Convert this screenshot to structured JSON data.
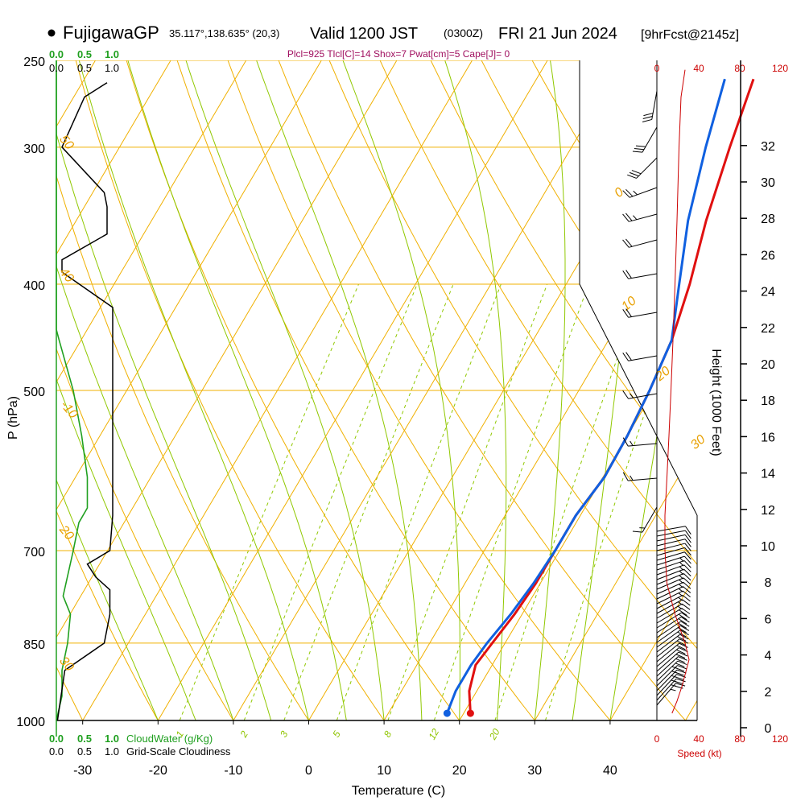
{
  "header": {
    "station": "FujigawaGP",
    "coords": "35.117°,138.635° (20,3)",
    "valid": "Valid 1200 JST",
    "utc": "(0300Z)",
    "date": "FRI 21 Jun 2024",
    "forecast": "[9hrFcst@2145z]",
    "params": "Plcl=925 Tlcl[C]=14 Shox=7 Pwat[cm]=5 Cape[J]= 0"
  },
  "colors": {
    "temperature": "#e01010",
    "dewpoint": "#1060e0",
    "isobar": "#f0b000",
    "mixing": "#90c800",
    "cloudwater": "#20a020",
    "wind_speed": "#cc0000"
  },
  "chart_data": {
    "type": "line",
    "title": "Skew-T log-P sounding",
    "xlabel": "Temperature (C)",
    "ylabel": "P (hPa)",
    "right_label": "Height (1000 Feet)",
    "xlim": [
      -35,
      45
    ],
    "ylim_hpa": [
      1000,
      250
    ],
    "x_ticks": [
      "-30",
      "-20",
      "-10",
      "0",
      "10",
      "20",
      "30",
      "40"
    ],
    "x_tick_values": [
      -30,
      -20,
      -10,
      0,
      10,
      20,
      30,
      40
    ],
    "p_ticks": [
      "250",
      "300",
      "400",
      "500",
      "700",
      "850",
      "1000"
    ],
    "p_tick_values": [
      250,
      300,
      400,
      500,
      700,
      850,
      1000
    ],
    "height_ticks": [
      "0",
      "2",
      "4",
      "6",
      "8",
      "10",
      "12",
      "14",
      "16",
      "18",
      "20",
      "22",
      "24",
      "26",
      "28",
      "30",
      "32"
    ],
    "height_tick_values": [
      0,
      2,
      4,
      6,
      8,
      10,
      12,
      14,
      16,
      18,
      20,
      22,
      24,
      26,
      28,
      30,
      32
    ],
    "isotherm_labels": [
      "0",
      "10",
      "20",
      "30"
    ],
    "isotherm_label_values": [
      0,
      10,
      20,
      30
    ],
    "mixing_labels": [
      "1",
      "2",
      "3",
      "5",
      "8",
      "12",
      "20"
    ],
    "mixing_label_values": [
      1,
      2,
      3,
      5,
      8,
      12,
      20
    ],
    "legend_top_green": [
      "0.0",
      "0.5",
      "1.0"
    ],
    "legend_top_black": [
      "0.0",
      "0.5",
      "1.0"
    ],
    "legend_bottom_green": [
      "0.0",
      "0.5",
      "1.0"
    ],
    "legend_bottom_black": [
      "0.0",
      "0.5",
      "1.0"
    ],
    "cloudwater_label": "CloudWater (g/Kg)",
    "cloudiness_label": "Grid-Scale Cloudiness",
    "speed_label": "Speed (kt)",
    "speed_ticks": [
      "0",
      "40",
      "80",
      "120"
    ],
    "speed_tick_values": [
      0,
      40,
      80,
      120
    ],
    "series": [
      {
        "name": "Temperature",
        "points": [
          [
            20.9,
            985
          ],
          [
            19.0,
            940
          ],
          [
            17.8,
            890
          ],
          [
            18.3,
            850
          ],
          [
            19.0,
            800
          ],
          [
            19.4,
            750
          ],
          [
            19.4,
            700
          ],
          [
            19.4,
            650
          ],
          [
            20.2,
            600
          ],
          [
            20.0,
            550
          ],
          [
            19.4,
            500
          ],
          [
            18.4,
            450
          ],
          [
            16.4,
            400
          ],
          [
            13.6,
            350
          ],
          [
            11.0,
            300
          ],
          [
            8.8,
            260
          ]
        ]
      },
      {
        "name": "Dewpoint",
        "points": [
          [
            17.8,
            985
          ],
          [
            17.2,
            940
          ],
          [
            17.2,
            890
          ],
          [
            17.6,
            850
          ],
          [
            18.5,
            800
          ],
          [
            19.1,
            750
          ],
          [
            19.4,
            700
          ],
          [
            19.4,
            650
          ],
          [
            20.2,
            600
          ],
          [
            20.0,
            550
          ],
          [
            19.4,
            500
          ],
          [
            18.4,
            450
          ],
          [
            15.0,
            400
          ],
          [
            11.2,
            350
          ],
          [
            7.8,
            300
          ],
          [
            5.0,
            260
          ]
        ]
      }
    ],
    "cloudwater_profile": [
      [
        0,
        1000
      ],
      [
        0.1,
        950
      ],
      [
        0.1,
        900
      ],
      [
        0.2,
        850
      ],
      [
        0.25,
        800
      ],
      [
        0.12,
        770
      ],
      [
        0.3,
        700
      ],
      [
        0.4,
        660
      ],
      [
        0.55,
        640
      ],
      [
        0.55,
        600
      ],
      [
        0.45,
        550
      ],
      [
        0.3,
        500
      ],
      [
        0.05,
        450
      ],
      [
        0,
        440
      ],
      [
        0,
        250
      ]
    ],
    "cloudiness_profile": [
      [
        0.02,
        1000
      ],
      [
        0.15,
        900
      ],
      [
        0.85,
        850
      ],
      [
        0.95,
        800
      ],
      [
        0.95,
        760
      ],
      [
        0.7,
        740
      ],
      [
        0.55,
        720
      ],
      [
        0.95,
        700
      ],
      [
        1.0,
        650
      ],
      [
        1.0,
        600
      ],
      [
        1.0,
        500
      ],
      [
        1.0,
        450
      ],
      [
        1.0,
        420
      ],
      [
        0.1,
        390
      ],
      [
        0.1,
        380
      ],
      [
        0.9,
        360
      ],
      [
        0.9,
        340
      ],
      [
        0.85,
        330
      ],
      [
        0.1,
        300
      ],
      [
        0.5,
        270
      ],
      [
        0.9,
        262
      ]
    ],
    "wind_speed_profile": [
      [
        15,
        985
      ],
      [
        20,
        960
      ],
      [
        25,
        930
      ],
      [
        32,
        880
      ],
      [
        28,
        850
      ],
      [
        18,
        800
      ],
      [
        10,
        750
      ],
      [
        8,
        700
      ],
      [
        8,
        650
      ],
      [
        10,
        600
      ],
      [
        12,
        550
      ],
      [
        14,
        500
      ],
      [
        16,
        450
      ],
      [
        18,
        400
      ],
      [
        20,
        350
      ],
      [
        22,
        300
      ],
      [
        24,
        270
      ],
      [
        28,
        255
      ]
    ]
  }
}
